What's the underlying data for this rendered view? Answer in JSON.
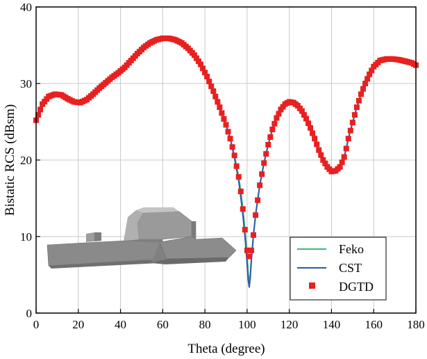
{
  "chart_data": {
    "type": "line",
    "xlabel": "Theta (degree)",
    "ylabel": "Bistatic RCS (dBsm)",
    "xlim": [
      0,
      180
    ],
    "ylim": [
      0,
      40
    ],
    "xticks": [
      0,
      20,
      40,
      60,
      80,
      100,
      120,
      140,
      160,
      180
    ],
    "yticks": [
      0,
      10,
      20,
      30,
      40
    ],
    "grid": true,
    "legend_position": "bottom-right",
    "inset": "ship-model",
    "series": [
      {
        "name": "Feko",
        "style": "line",
        "color": "#3cb878",
        "x": [
          0,
          3,
          6,
          9,
          12,
          15,
          18,
          21,
          24,
          27,
          30,
          33,
          36,
          39,
          42,
          45,
          48,
          51,
          54,
          57,
          60,
          63,
          66,
          69,
          72,
          75,
          78,
          81,
          84,
          87,
          90,
          92,
          94,
          96,
          97,
          98,
          99,
          100,
          100.5,
          101,
          101.5,
          102,
          103,
          104,
          106,
          108,
          110,
          112,
          114,
          116,
          118,
          120,
          122,
          124,
          126,
          128,
          130,
          132,
          134,
          136,
          138,
          140,
          142,
          144,
          145,
          146,
          147,
          148,
          150,
          152,
          154,
          156,
          158,
          160,
          163,
          166,
          169,
          172,
          175,
          178,
          180
        ],
        "values": [
          25.2,
          27.3,
          28.3,
          28.6,
          28.5,
          28.0,
          27.6,
          27.5,
          27.9,
          28.6,
          29.4,
          30.1,
          30.8,
          31.4,
          32.1,
          33.0,
          33.9,
          34.7,
          35.3,
          35.7,
          35.9,
          35.9,
          35.7,
          35.3,
          34.6,
          33.7,
          32.5,
          30.9,
          29.0,
          26.9,
          24.6,
          22.8,
          20.6,
          17.8,
          15.9,
          13.6,
          10.9,
          7.6,
          5.2,
          4.0,
          5.0,
          7.0,
          10.2,
          12.8,
          16.7,
          19.6,
          22.0,
          24.0,
          25.5,
          26.6,
          27.3,
          27.6,
          27.5,
          27.1,
          26.4,
          25.4,
          24.2,
          22.8,
          21.3,
          20.0,
          19.1,
          18.5,
          18.6,
          19.1,
          19.7,
          20.4,
          21.5,
          22.8,
          24.9,
          26.9,
          28.6,
          30.0,
          31.2,
          32.2,
          33.0,
          33.2,
          33.2,
          33.1,
          32.9,
          32.7,
          32.4
        ]
      },
      {
        "name": "CST",
        "style": "line",
        "color": "#2a5ba8",
        "x": [
          0,
          3,
          6,
          9,
          12,
          15,
          18,
          21,
          24,
          27,
          30,
          33,
          36,
          39,
          42,
          45,
          48,
          51,
          54,
          57,
          60,
          63,
          66,
          69,
          72,
          75,
          78,
          81,
          84,
          87,
          90,
          92,
          94,
          96,
          97,
          98,
          99,
          100,
          100.5,
          101,
          101.5,
          102,
          103,
          104,
          106,
          108,
          110,
          112,
          114,
          116,
          118,
          120,
          122,
          124,
          126,
          128,
          130,
          132,
          134,
          136,
          138,
          140,
          142,
          144,
          145,
          146,
          147,
          148,
          150,
          152,
          154,
          156,
          158,
          160,
          163,
          166,
          169,
          172,
          175,
          178,
          180
        ],
        "values": [
          25.2,
          27.3,
          28.3,
          28.6,
          28.5,
          28.0,
          27.6,
          27.5,
          27.9,
          28.6,
          29.4,
          30.1,
          30.8,
          31.4,
          32.1,
          33.0,
          33.9,
          34.7,
          35.3,
          35.7,
          35.9,
          35.9,
          35.7,
          35.3,
          34.6,
          33.7,
          32.5,
          30.9,
          29.0,
          26.9,
          24.6,
          22.8,
          20.3,
          17.3,
          15.2,
          12.8,
          10.0,
          6.5,
          4.4,
          3.4,
          4.6,
          6.8,
          10.1,
          12.8,
          16.7,
          19.6,
          22.0,
          24.0,
          25.5,
          26.6,
          27.3,
          27.6,
          27.5,
          27.1,
          26.4,
          25.4,
          24.2,
          22.8,
          21.3,
          20.0,
          19.1,
          18.5,
          18.6,
          19.1,
          19.7,
          20.4,
          21.5,
          22.8,
          24.9,
          26.9,
          28.6,
          30.0,
          31.2,
          32.2,
          33.0,
          33.2,
          33.2,
          33.1,
          32.9,
          32.7,
          32.4
        ]
      },
      {
        "name": "DGTD",
        "style": "marker",
        "color": "#e82020",
        "step": 1,
        "x": [
          0,
          3,
          6,
          9,
          12,
          15,
          18,
          21,
          24,
          27,
          30,
          33,
          36,
          39,
          42,
          45,
          48,
          51,
          54,
          57,
          60,
          63,
          66,
          69,
          72,
          75,
          78,
          81,
          84,
          87,
          90,
          92,
          94,
          96,
          97,
          98,
          99,
          100,
          100.5,
          101,
          101.5,
          102,
          103,
          104,
          106,
          108,
          110,
          112,
          114,
          116,
          118,
          120,
          122,
          124,
          126,
          128,
          130,
          132,
          134,
          136,
          138,
          140,
          142,
          144,
          145,
          146,
          147,
          148,
          150,
          152,
          154,
          156,
          158,
          160,
          163,
          166,
          169,
          172,
          175,
          178,
          180
        ],
        "values": [
          25.2,
          27.3,
          28.3,
          28.6,
          28.5,
          28.0,
          27.6,
          27.5,
          27.9,
          28.6,
          29.4,
          30.1,
          30.8,
          31.4,
          32.1,
          33.0,
          33.9,
          34.7,
          35.3,
          35.7,
          35.9,
          35.9,
          35.7,
          35.3,
          34.6,
          33.7,
          32.5,
          30.9,
          29.0,
          26.9,
          24.6,
          22.8,
          20.6,
          17.8,
          15.9,
          13.6,
          10.9,
          8.2,
          7.4,
          7.4,
          7.6,
          8.2,
          10.2,
          12.8,
          16.7,
          19.6,
          22.0,
          24.0,
          25.5,
          26.6,
          27.3,
          27.6,
          27.5,
          27.1,
          26.4,
          25.4,
          24.2,
          22.8,
          21.3,
          20.0,
          19.1,
          18.5,
          18.6,
          19.1,
          19.7,
          20.4,
          21.5,
          22.8,
          24.9,
          26.9,
          28.6,
          30.0,
          31.2,
          32.2,
          33.0,
          33.2,
          33.2,
          33.1,
          32.9,
          32.7,
          32.4
        ]
      }
    ]
  }
}
